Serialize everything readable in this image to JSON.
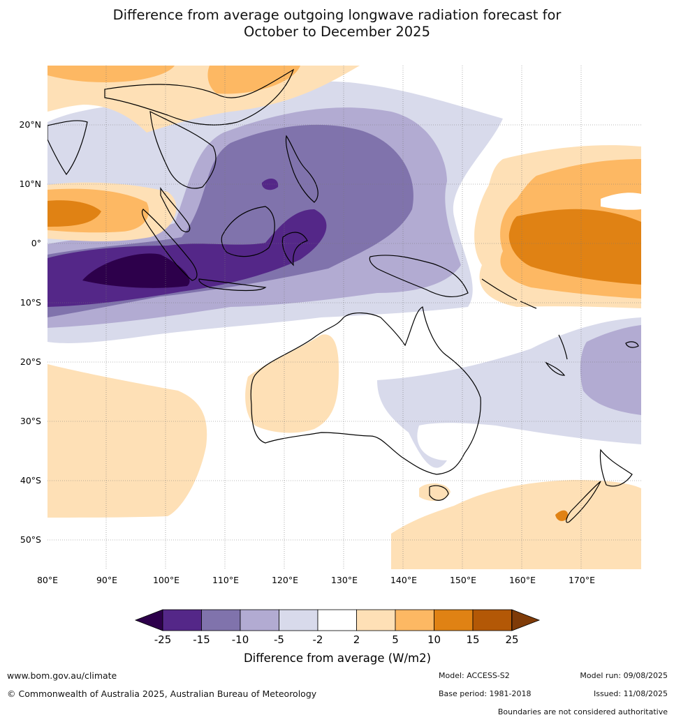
{
  "title_line1": "Difference from average outgoing longwave radiation forecast for",
  "title_line2": "October to December 2025",
  "map": {
    "lon_range": [
      80,
      180
    ],
    "lat_range": [
      -55,
      30
    ],
    "lon_ticks": [
      "80°E",
      "90°E",
      "100°E",
      "110°E",
      "120°E",
      "130°E",
      "140°E",
      "150°E",
      "160°E",
      "170°E"
    ],
    "lat_ticks": [
      "20°N",
      "10°N",
      "0°",
      "10°S",
      "20°S",
      "30°S",
      "40°S",
      "50°S"
    ],
    "gridlines": true
  },
  "colorbar": {
    "title": "Difference from average (W/m2)",
    "ticks": [
      "-25",
      "-15",
      "-10",
      "-5",
      "-2",
      "2",
      "5",
      "10",
      "15",
      "25"
    ],
    "colors": [
      "#2d004b",
      "#542788",
      "#8073ac",
      "#b2abd2",
      "#d8daeb",
      "#ffffff",
      "#fee0b6",
      "#fdb863",
      "#e08214",
      "#b35806",
      "#7f3b08"
    ]
  },
  "footer": {
    "url": "www.bom.gov.au/climate",
    "copyright": "© Commonwealth of Australia 2025, Australian Bureau of Meteorology",
    "model": "Model: ACCESS-S2",
    "model_run": "Model run: 09/08/2025",
    "base_period": "Base period: 1981-2018",
    "issued": "Issued: 11/08/2025",
    "disclaimer": "Boundaries are not considered authoritative"
  }
}
